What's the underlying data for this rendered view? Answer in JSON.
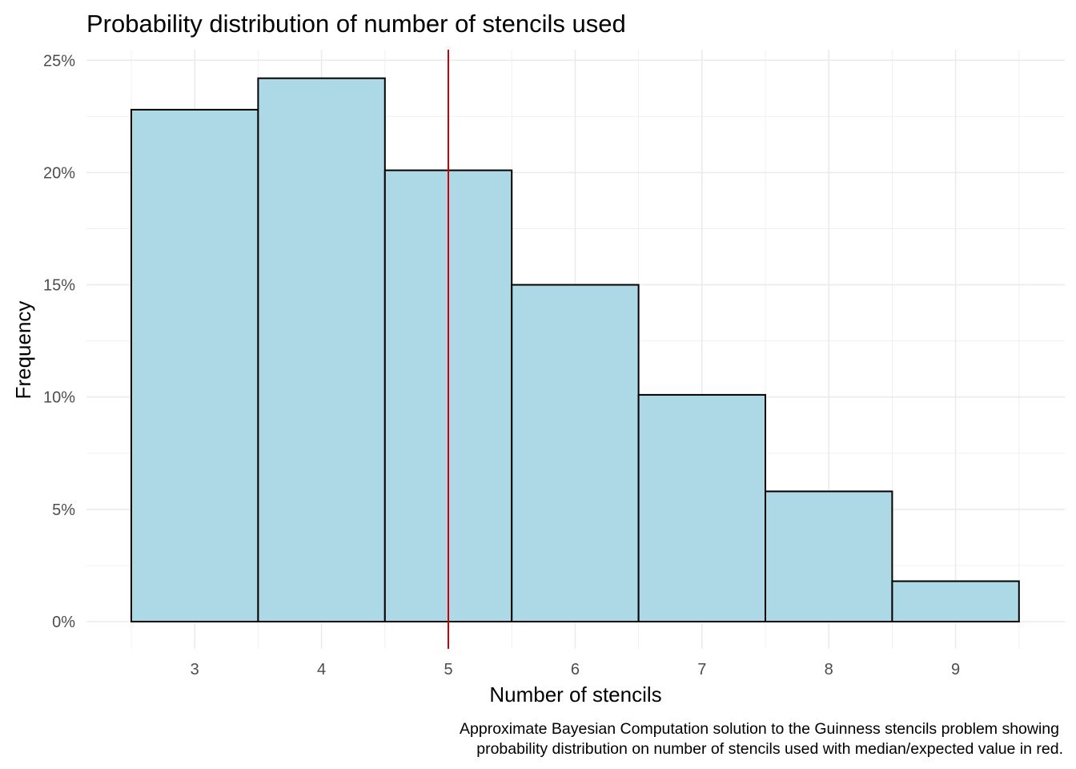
{
  "chart_data": {
    "type": "bar",
    "title": "Probability distribution of number of stencils used",
    "xlabel": "Number of stencils",
    "ylabel": "Frequency",
    "categories": [
      "3",
      "4",
      "5",
      "6",
      "7",
      "8",
      "9"
    ],
    "x": [
      3,
      4,
      5,
      6,
      7,
      8,
      9
    ],
    "values": [
      0.228,
      0.242,
      0.201,
      0.15,
      0.101,
      0.058,
      0.018
    ],
    "y_ticks": [
      0,
      0.05,
      0.1,
      0.15,
      0.2,
      0.25
    ],
    "y_tick_labels": [
      "0%",
      "5%",
      "10%",
      "15%",
      "20%",
      "25%"
    ],
    "xlim": [
      2.5,
      9.5
    ],
    "ylim": [
      0,
      0.25
    ],
    "median_line": {
      "x": 5,
      "color": "#cc0000"
    },
    "bar_fill": "#add8e6",
    "bar_stroke": "#000000",
    "grid": true,
    "legend": "none",
    "caption_lines": [
      "Approximate Bayesian Computation solution to the Guinness stencils problem showing",
      "probability distribution on number of stencils used with median/expected value in red."
    ]
  }
}
